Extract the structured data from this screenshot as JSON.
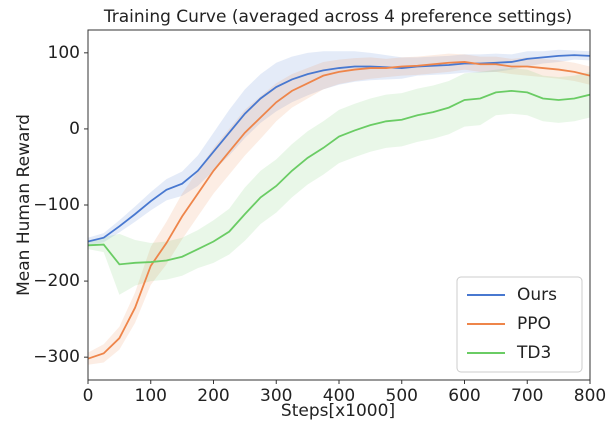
{
  "chart_data": {
    "type": "line",
    "title": "Training Curve (averaged across 4 preference settings)",
    "x_label": "Steps[x1000]",
    "y_label": "Mean Human Reward",
    "x": [
      0,
      25,
      50,
      75,
      100,
      125,
      150,
      175,
      200,
      225,
      250,
      275,
      300,
      325,
      350,
      375,
      400,
      425,
      450,
      475,
      500,
      525,
      550,
      575,
      600,
      625,
      650,
      675,
      700,
      725,
      750,
      775,
      800
    ],
    "series": [
      {
        "name": "Ours",
        "color": "#4878d0",
        "values": [
          -148,
          -143,
          -128,
          -112,
          -95,
          -80,
          -72,
          -55,
          -30,
          -5,
          20,
          40,
          55,
          65,
          72,
          77,
          80,
          82,
          82,
          81,
          80,
          82,
          83,
          84,
          86,
          86,
          87,
          88,
          92,
          94,
          96,
          97,
          96
        ],
        "error": [
          5,
          6,
          8,
          10,
          12,
          14,
          16,
          20,
          25,
          30,
          32,
          32,
          32,
          30,
          28,
          25,
          22,
          20,
          18,
          16,
          14,
          12,
          12,
          12,
          12,
          12,
          12,
          10,
          10,
          8,
          8,
          6,
          6
        ]
      },
      {
        "name": "PPO",
        "color": "#ee854a",
        "values": [
          -302,
          -295,
          -275,
          -235,
          -180,
          -150,
          -115,
          -85,
          -55,
          -30,
          -5,
          15,
          35,
          50,
          60,
          70,
          75,
          78,
          80,
          80,
          82,
          83,
          85,
          87,
          88,
          85,
          85,
          82,
          82,
          80,
          78,
          75,
          70
        ],
        "error": [
          8,
          12,
          15,
          20,
          25,
          28,
          30,
          30,
          30,
          30,
          30,
          28,
          25,
          22,
          20,
          18,
          16,
          15,
          14,
          12,
          12,
          12,
          12,
          12,
          10,
          10,
          10,
          10,
          12,
          12,
          12,
          12,
          12
        ]
      },
      {
        "name": "TD3",
        "color": "#6acc64",
        "values": [
          -153,
          -152,
          -178,
          -176,
          -175,
          -173,
          -168,
          -158,
          -148,
          -135,
          -112,
          -90,
          -75,
          -55,
          -38,
          -25,
          -10,
          -2,
          5,
          10,
          12,
          18,
          22,
          28,
          38,
          40,
          48,
          50,
          48,
          40,
          38,
          40,
          45
        ],
        "error": [
          5,
          10,
          40,
          30,
          25,
          25,
          25,
          25,
          28,
          30,
          35,
          35,
          35,
          35,
          35,
          35,
          35,
          35,
          35,
          35,
          35,
          35,
          35,
          35,
          35,
          35,
          30,
          30,
          30,
          30,
          30,
          30,
          30
        ]
      }
    ],
    "xlim": [
      0,
      800
    ],
    "xticks": [
      0,
      100,
      200,
      300,
      400,
      500,
      600,
      700,
      800
    ],
    "ylim": [
      -330,
      130
    ],
    "yticks": [
      {
        "value": -300,
        "label": "−300"
      },
      {
        "value": -200,
        "label": "−200"
      },
      {
        "value": -100,
        "label": "−100"
      },
      0,
      100
    ],
    "legend": "lower right"
  }
}
